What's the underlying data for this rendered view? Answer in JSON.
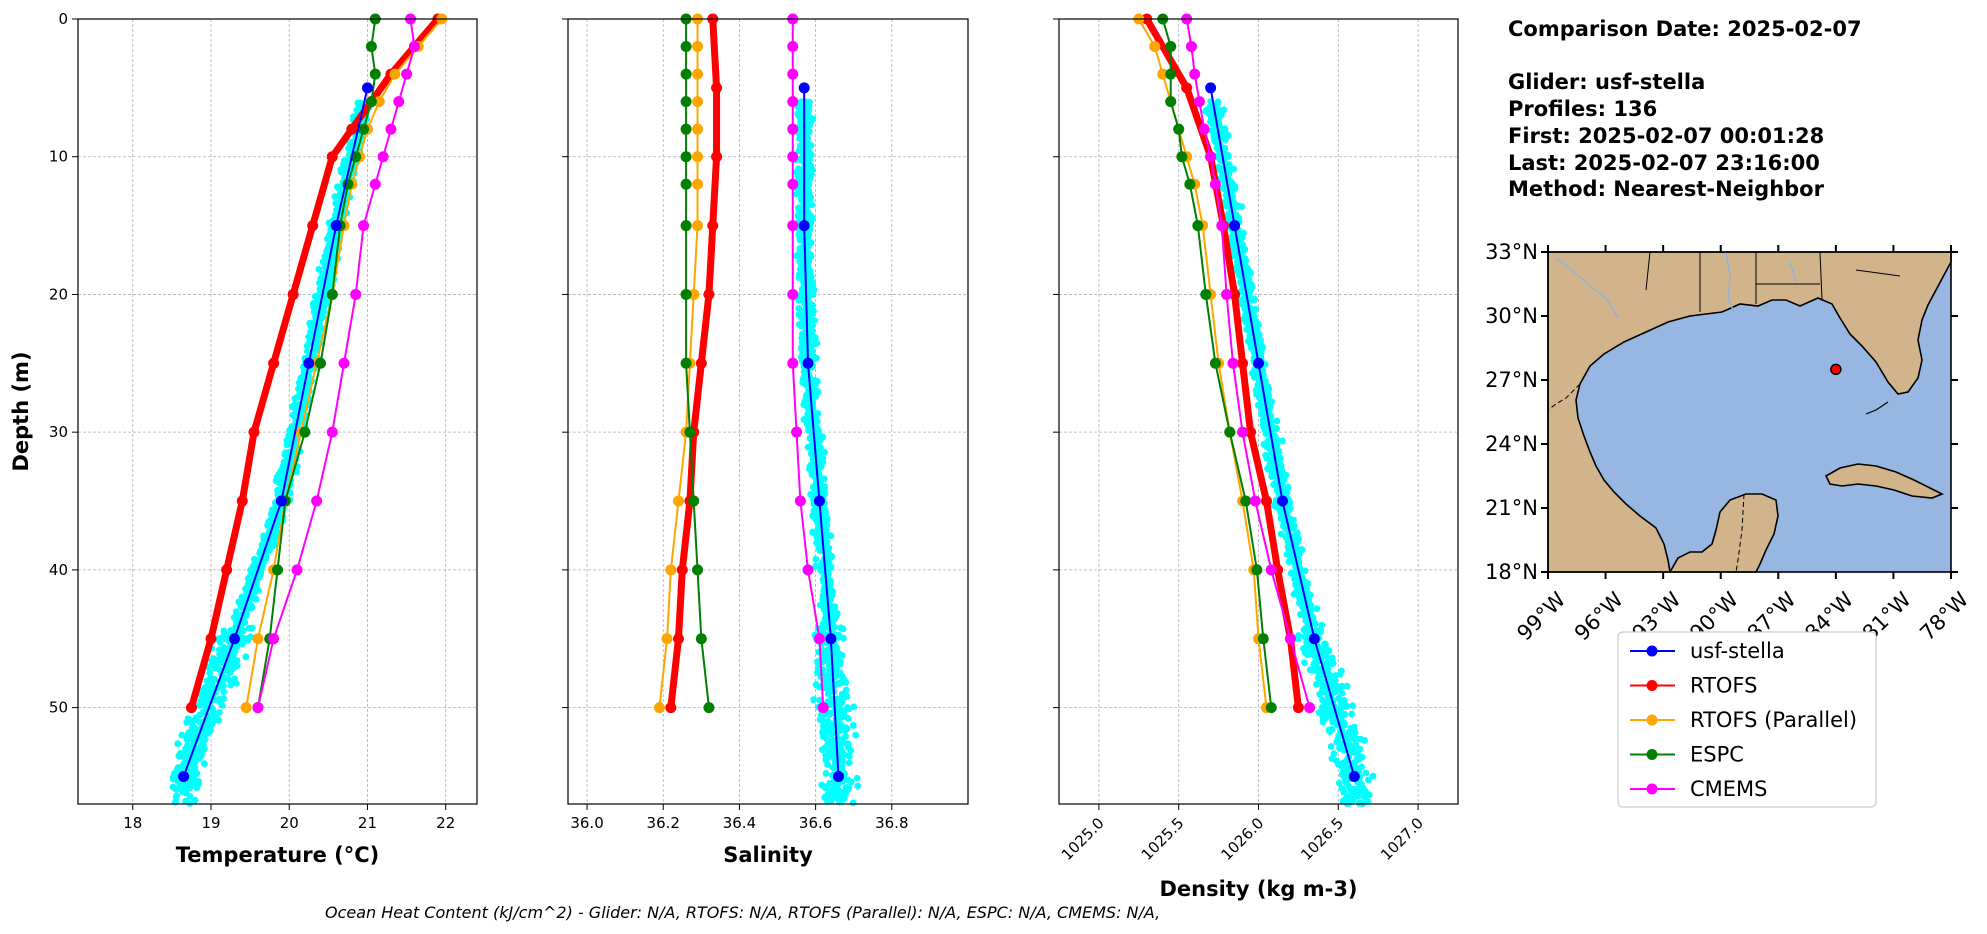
{
  "chart_data": [
    {
      "type": "line",
      "id": "temperature",
      "xlabel": "Temperature (°C)",
      "ylabel": "Depth (m)",
      "xlim": [
        17.3,
        22.4
      ],
      "ylim": [
        57,
        0
      ],
      "xticks": [
        18,
        19,
        20,
        21,
        22
      ],
      "yticks": [
        0,
        10,
        20,
        30,
        40,
        50
      ],
      "grid": true,
      "series": [
        {
          "name": "usf-stella",
          "color": "#0000ff",
          "depth": [
            5,
            15,
            25,
            35,
            45,
            55
          ],
          "values": [
            21.0,
            20.6,
            20.25,
            19.9,
            19.3,
            18.65
          ]
        },
        {
          "name": "RTOFS",
          "color": "#ff0000",
          "depth": [
            0,
            2,
            4,
            6,
            8,
            10,
            15,
            20,
            25,
            30,
            35,
            40,
            45,
            50
          ],
          "values": [
            21.9,
            21.6,
            21.3,
            21.05,
            20.8,
            20.55,
            20.3,
            20.05,
            19.8,
            19.55,
            19.4,
            19.2,
            19.0,
            18.75
          ]
        },
        {
          "name": "RTOFS (Parallel)",
          "color": "#ffa500",
          "depth": [
            0,
            2,
            4,
            6,
            8,
            10,
            12,
            15,
            20,
            25,
            30,
            35,
            40,
            45,
            50
          ],
          "values": [
            21.95,
            21.65,
            21.35,
            21.15,
            21.0,
            20.9,
            20.8,
            20.7,
            20.55,
            20.35,
            20.15,
            19.95,
            19.8,
            19.6,
            19.45
          ]
        },
        {
          "name": "ESPC",
          "color": "#008000",
          "depth": [
            0,
            2,
            4,
            6,
            8,
            10,
            12,
            15,
            20,
            25,
            30,
            35,
            40,
            45,
            50
          ],
          "values": [
            21.1,
            21.05,
            21.1,
            21.05,
            20.95,
            20.85,
            20.75,
            20.65,
            20.55,
            20.4,
            20.2,
            19.95,
            19.85,
            19.75,
            19.6
          ]
        },
        {
          "name": "CMEMS",
          "color": "#ff00ff",
          "depth": [
            0,
            2,
            4,
            6,
            8,
            10,
            12,
            15,
            20,
            25,
            30,
            35,
            40,
            45,
            50
          ],
          "values": [
            21.55,
            21.6,
            21.5,
            21.4,
            21.3,
            21.2,
            21.1,
            20.95,
            20.85,
            20.7,
            20.55,
            20.35,
            20.1,
            19.8,
            19.6
          ]
        }
      ]
    },
    {
      "type": "line",
      "id": "salinity",
      "xlabel": "Salinity",
      "ylim": [
        57,
        0
      ],
      "xlim": [
        35.95,
        37.0
      ],
      "xticks": [
        36.0,
        36.2,
        36.4,
        36.6,
        36.8
      ],
      "yticks": [
        0,
        10,
        20,
        30,
        40,
        50
      ],
      "grid": true,
      "series": [
        {
          "name": "usf-stella",
          "color": "#0000ff",
          "depth": [
            5,
            15,
            25,
            35,
            45,
            55
          ],
          "values": [
            36.57,
            36.57,
            36.58,
            36.61,
            36.64,
            36.66
          ]
        },
        {
          "name": "RTOFS",
          "color": "#ff0000",
          "depth": [
            0,
            5,
            10,
            15,
            20,
            25,
            30,
            35,
            40,
            45,
            50
          ],
          "values": [
            36.33,
            36.34,
            36.34,
            36.33,
            36.32,
            36.3,
            36.28,
            36.27,
            36.25,
            36.24,
            36.22
          ]
        },
        {
          "name": "RTOFS (Parallel)",
          "color": "#ffa500",
          "depth": [
            0,
            2,
            4,
            6,
            8,
            10,
            12,
            15,
            20,
            25,
            30,
            35,
            40,
            45,
            50
          ],
          "values": [
            36.29,
            36.29,
            36.29,
            36.29,
            36.29,
            36.29,
            36.29,
            36.29,
            36.28,
            36.27,
            36.26,
            36.24,
            36.22,
            36.21,
            36.19
          ]
        },
        {
          "name": "ESPC",
          "color": "#008000",
          "depth": [
            0,
            2,
            4,
            6,
            8,
            10,
            12,
            15,
            20,
            25,
            30,
            35,
            40,
            45,
            50
          ],
          "values": [
            36.26,
            36.26,
            36.26,
            36.26,
            36.26,
            36.26,
            36.26,
            36.26,
            36.26,
            36.26,
            36.27,
            36.28,
            36.29,
            36.3,
            36.32
          ]
        },
        {
          "name": "CMEMS",
          "color": "#ff00ff",
          "depth": [
            0,
            2,
            4,
            6,
            8,
            10,
            12,
            15,
            20,
            25,
            30,
            35,
            40,
            45,
            50
          ],
          "values": [
            36.54,
            36.54,
            36.54,
            36.54,
            36.54,
            36.54,
            36.54,
            36.54,
            36.54,
            36.54,
            36.55,
            36.56,
            36.58,
            36.61,
            36.62
          ]
        }
      ]
    },
    {
      "type": "line",
      "id": "density",
      "xlabel": "Density (kg m-3)",
      "ylim": [
        57,
        0
      ],
      "xlim": [
        1024.75,
        1027.25
      ],
      "xticks": [
        1025.0,
        1025.5,
        1026.0,
        1026.5,
        1027.0
      ],
      "yticks": [
        0,
        10,
        20,
        30,
        40,
        50
      ],
      "grid": true,
      "series": [
        {
          "name": "usf-stella",
          "color": "#0000ff",
          "depth": [
            5,
            15,
            25,
            35,
            45,
            55
          ],
          "values": [
            1025.7,
            1025.85,
            1026.0,
            1026.15,
            1026.35,
            1026.6
          ]
        },
        {
          "name": "RTOFS",
          "color": "#ff0000",
          "depth": [
            0,
            5,
            10,
            15,
            20,
            25,
            30,
            35,
            40,
            45,
            50
          ],
          "values": [
            1025.3,
            1025.55,
            1025.7,
            1025.78,
            1025.85,
            1025.9,
            1025.95,
            1026.05,
            1026.12,
            1026.2,
            1026.25
          ]
        },
        {
          "name": "RTOFS (Parallel)",
          "color": "#ffa500",
          "depth": [
            0,
            2,
            4,
            6,
            8,
            10,
            12,
            15,
            20,
            25,
            30,
            35,
            40,
            45,
            50
          ],
          "values": [
            1025.25,
            1025.35,
            1025.4,
            1025.45,
            1025.5,
            1025.55,
            1025.6,
            1025.65,
            1025.7,
            1025.75,
            1025.82,
            1025.9,
            1025.97,
            1026.0,
            1026.05
          ]
        },
        {
          "name": "ESPC",
          "color": "#008000",
          "depth": [
            0,
            2,
            4,
            6,
            8,
            10,
            12,
            15,
            20,
            25,
            30,
            35,
            40,
            45,
            50
          ],
          "values": [
            1025.4,
            1025.45,
            1025.45,
            1025.45,
            1025.5,
            1025.52,
            1025.57,
            1025.62,
            1025.67,
            1025.73,
            1025.82,
            1025.92,
            1025.99,
            1026.03,
            1026.08
          ]
        },
        {
          "name": "CMEMS",
          "color": "#ff00ff",
          "depth": [
            0,
            2,
            4,
            6,
            8,
            10,
            12,
            15,
            20,
            25,
            30,
            35,
            40,
            45,
            50
          ],
          "values": [
            1025.55,
            1025.58,
            1025.6,
            1025.63,
            1025.66,
            1025.7,
            1025.73,
            1025.77,
            1025.8,
            1025.84,
            1025.9,
            1025.98,
            1026.08,
            1026.2,
            1026.32
          ]
        }
      ]
    }
  ],
  "info": {
    "lines": [
      "Comparison Date: 2025-02-07",
      "",
      "Glider: usf-stella",
      "Profiles: 136",
      "First: 2025-02-07 00:01:28",
      "Last: 2025-02-07 23:16:00",
      "Method: Nearest-Neighbor"
    ]
  },
  "map": {
    "lat_labels": [
      "33°N",
      "30°N",
      "27°N",
      "24°N",
      "21°N",
      "18°N"
    ],
    "lon_labels": [
      "99°W",
      "96°W",
      "93°W",
      "90°W",
      "87°W",
      "84°W",
      "81°W",
      "78°W"
    ],
    "glider_marker": {
      "lon": -84.0,
      "lat": 27.5,
      "color": "#ff0000"
    },
    "land_color": "#d2b48c",
    "ocean_color": "#97b6e1"
  },
  "legend": {
    "entries": [
      {
        "label": "usf-stella",
        "color": "#0000ff"
      },
      {
        "label": "RTOFS",
        "color": "#ff0000"
      },
      {
        "label": "RTOFS (Parallel)",
        "color": "#ffa500"
      },
      {
        "label": "ESPC",
        "color": "#008000"
      },
      {
        "label": "CMEMS",
        "color": "#ff00ff"
      }
    ]
  },
  "footer": {
    "text": "Ocean Heat Content (kJ/cm^2) - Glider: N/A,  RTOFS: N/A,  RTOFS (Parallel): N/A,  ESPC: N/A,  CMEMS: N/A,"
  },
  "scatter_color": "#00ffff"
}
